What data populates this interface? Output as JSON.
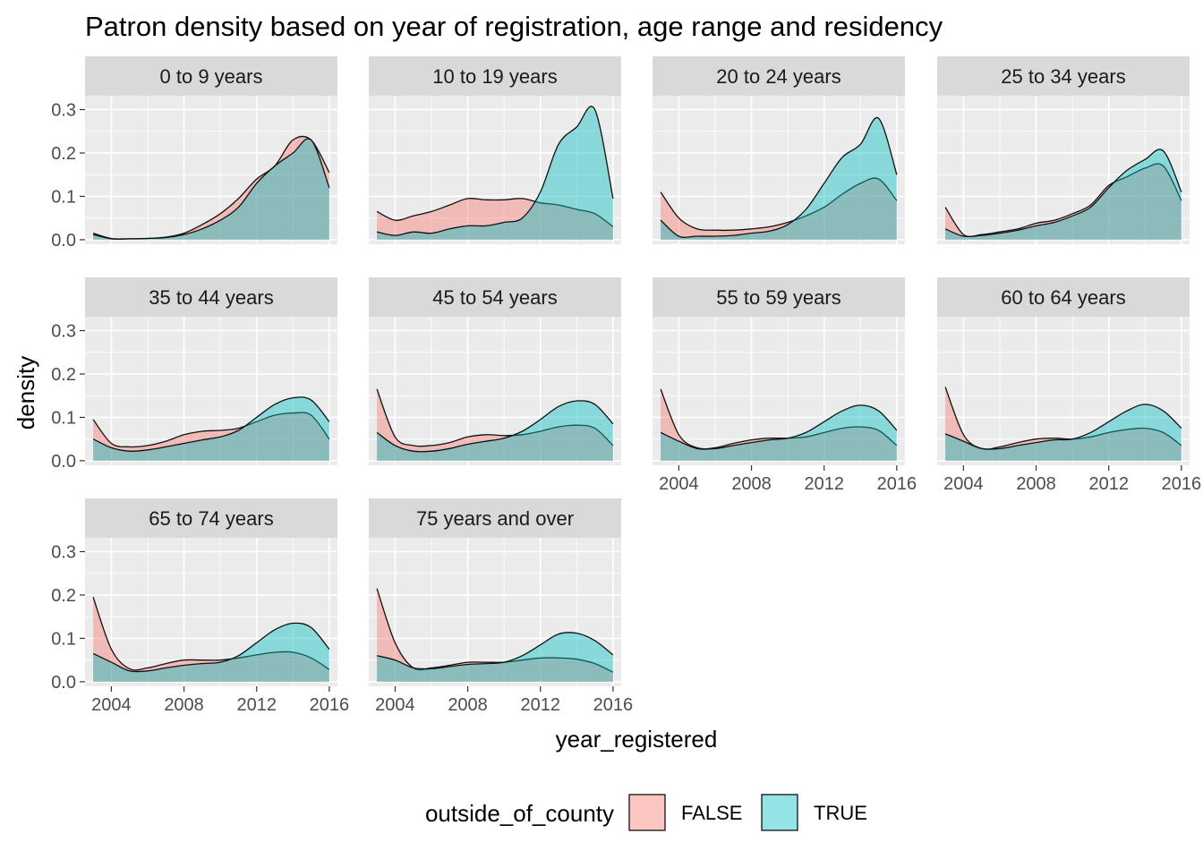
{
  "chart_data": {
    "type": "area",
    "subtype": "density",
    "title": "Patron density based on year of registration, age range and residency",
    "xlabel": "year_registered",
    "ylabel": "density",
    "xlim": [
      2003,
      2016
    ],
    "ylim": [
      0,
      0.33
    ],
    "x_ticks": [
      2004,
      2008,
      2012,
      2016
    ],
    "x_tick_labels": [
      "2004",
      "2008",
      "2012",
      "2016"
    ],
    "y_ticks": [
      0.0,
      0.1,
      0.2,
      0.3
    ],
    "y_tick_labels": [
      "0.0",
      "0.1",
      "0.2",
      "0.3"
    ],
    "grid": true,
    "legend": {
      "title": "outside_of_county",
      "position": "bottom",
      "entries": [
        {
          "label": "FALSE",
          "color": "#F8766D"
        },
        {
          "label": "TRUE",
          "color": "#00BFC4"
        }
      ]
    },
    "x": [
      2003,
      2004,
      2005,
      2006,
      2007,
      2008,
      2009,
      2010,
      2011,
      2012,
      2013,
      2014,
      2015,
      2016
    ],
    "facets": [
      {
        "label": "0 to 9 years",
        "false": [
          0.015,
          0.003,
          0.002,
          0.003,
          0.006,
          0.015,
          0.035,
          0.06,
          0.095,
          0.14,
          0.17,
          0.23,
          0.23,
          0.155
        ],
        "true": [
          0.012,
          0.002,
          0.002,
          0.003,
          0.005,
          0.012,
          0.025,
          0.045,
          0.075,
          0.13,
          0.17,
          0.2,
          0.23,
          0.12
        ]
      },
      {
        "label": "10 to 19 years",
        "false": [
          0.065,
          0.045,
          0.055,
          0.065,
          0.08,
          0.095,
          0.092,
          0.092,
          0.095,
          0.085,
          0.08,
          0.07,
          0.06,
          0.03
        ],
        "true": [
          0.018,
          0.01,
          0.018,
          0.015,
          0.025,
          0.032,
          0.032,
          0.04,
          0.05,
          0.11,
          0.22,
          0.26,
          0.3,
          0.095
        ]
      },
      {
        "label": "20 to 24 years",
        "false": [
          0.11,
          0.05,
          0.025,
          0.022,
          0.022,
          0.025,
          0.03,
          0.04,
          0.055,
          0.075,
          0.105,
          0.13,
          0.14,
          0.09
        ],
        "true": [
          0.045,
          0.008,
          0.008,
          0.008,
          0.01,
          0.015,
          0.02,
          0.035,
          0.07,
          0.13,
          0.19,
          0.22,
          0.28,
          0.15
        ]
      },
      {
        "label": "25 to 34 years",
        "false": [
          0.075,
          0.012,
          0.012,
          0.018,
          0.025,
          0.038,
          0.045,
          0.06,
          0.08,
          0.125,
          0.145,
          0.165,
          0.17,
          0.09
        ],
        "true": [
          0.025,
          0.008,
          0.01,
          0.015,
          0.022,
          0.032,
          0.04,
          0.055,
          0.075,
          0.12,
          0.16,
          0.185,
          0.205,
          0.11
        ]
      },
      {
        "label": "35 to 44 years",
        "false": [
          0.095,
          0.04,
          0.032,
          0.035,
          0.045,
          0.06,
          0.068,
          0.07,
          0.075,
          0.09,
          0.105,
          0.11,
          0.105,
          0.05
        ],
        "true": [
          0.05,
          0.03,
          0.022,
          0.025,
          0.032,
          0.04,
          0.048,
          0.055,
          0.07,
          0.1,
          0.13,
          0.145,
          0.14,
          0.09
        ]
      },
      {
        "label": "45 to 54 years",
        "false": [
          0.165,
          0.055,
          0.035,
          0.035,
          0.042,
          0.055,
          0.06,
          0.058,
          0.06,
          0.068,
          0.078,
          0.082,
          0.075,
          0.035
        ],
        "true": [
          0.065,
          0.035,
          0.022,
          0.022,
          0.028,
          0.038,
          0.045,
          0.052,
          0.068,
          0.095,
          0.125,
          0.138,
          0.13,
          0.085
        ]
      },
      {
        "label": "55 to 59 years",
        "false": [
          0.165,
          0.06,
          0.03,
          0.03,
          0.04,
          0.048,
          0.052,
          0.052,
          0.055,
          0.065,
          0.075,
          0.078,
          0.07,
          0.035
        ],
        "true": [
          0.065,
          0.045,
          0.028,
          0.028,
          0.035,
          0.042,
          0.048,
          0.052,
          0.065,
          0.09,
          0.115,
          0.128,
          0.115,
          0.07
        ]
      },
      {
        "label": "60 to 64 years",
        "false": [
          0.17,
          0.06,
          0.028,
          0.032,
          0.042,
          0.05,
          0.052,
          0.05,
          0.055,
          0.065,
          0.072,
          0.075,
          0.065,
          0.035
        ],
        "true": [
          0.062,
          0.045,
          0.028,
          0.028,
          0.035,
          0.042,
          0.048,
          0.05,
          0.065,
          0.09,
          0.115,
          0.13,
          0.115,
          0.075
        ]
      },
      {
        "label": "65 to 74 years",
        "false": [
          0.195,
          0.075,
          0.03,
          0.032,
          0.042,
          0.05,
          0.05,
          0.05,
          0.055,
          0.062,
          0.068,
          0.068,
          0.055,
          0.028
        ],
        "true": [
          0.065,
          0.045,
          0.025,
          0.025,
          0.032,
          0.038,
          0.042,
          0.045,
          0.06,
          0.09,
          0.12,
          0.135,
          0.125,
          0.075
        ]
      },
      {
        "label": "75 years and over",
        "false": [
          0.215,
          0.09,
          0.032,
          0.032,
          0.038,
          0.045,
          0.045,
          0.045,
          0.05,
          0.055,
          0.055,
          0.052,
          0.042,
          0.022
        ],
        "true": [
          0.06,
          0.05,
          0.032,
          0.03,
          0.035,
          0.04,
          0.042,
          0.045,
          0.06,
          0.085,
          0.11,
          0.112,
          0.095,
          0.062
        ]
      }
    ]
  }
}
